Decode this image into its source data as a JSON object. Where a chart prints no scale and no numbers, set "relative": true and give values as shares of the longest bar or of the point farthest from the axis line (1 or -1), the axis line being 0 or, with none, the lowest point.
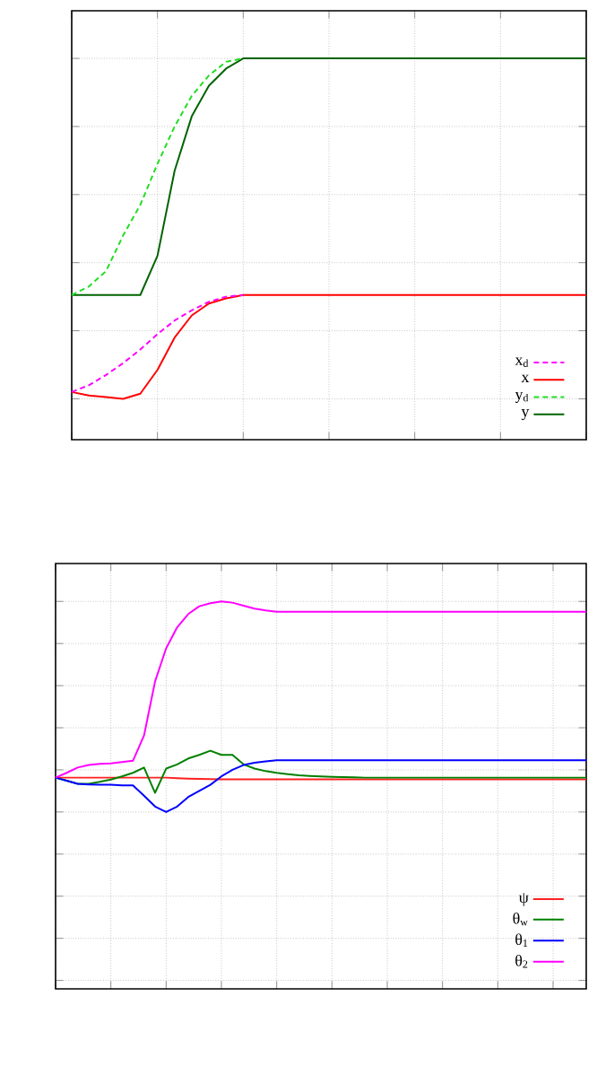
{
  "chart_data": [
    {
      "type": "line",
      "relative": true,
      "grid": true,
      "legend": "bottom right",
      "tick_labels": false,
      "categories": [
        null,
        null,
        null,
        null,
        null,
        null,
        null,
        null,
        null,
        null,
        null,
        null,
        null,
        null,
        null,
        null,
        null,
        null,
        null,
        null,
        null,
        null,
        null,
        null,
        null,
        null,
        null,
        null,
        null,
        null,
        null
      ],
      "series": [
        {
          "name": "x$_{d}$",
          "color": "#ff00ff",
          "line_style": "dashed",
          "values": [
            0.02,
            0.04,
            0.07,
            0.105,
            0.145,
            0.19,
            0.23,
            0.26,
            0.285,
            0.3,
            0.305,
            null,
            null,
            null,
            null,
            null,
            null,
            null,
            null,
            null,
            null,
            null,
            null,
            null,
            null,
            null,
            null,
            null,
            null,
            null,
            null
          ]
        },
        {
          "name": "x",
          "color": "#ff0000",
          "line_style": "solid",
          "values": [
            0.02,
            0.01,
            0.005,
            0,
            0.015,
            0.085,
            0.18,
            0.245,
            0.28,
            0.295,
            0.305,
            0.305,
            0.305,
            0.305,
            0.305,
            0.305,
            0.305,
            0.305,
            0.305,
            0.305,
            0.305,
            0.305,
            0.305,
            0.305,
            0.305,
            0.305,
            0.305,
            0.305,
            0.305,
            0.305,
            0.305
          ]
        },
        {
          "name": "y$_{d}$",
          "color": "#22dd22",
          "line_style": "dashed",
          "values": [
            0.305,
            0.33,
            0.375,
            0.48,
            0.57,
            0.69,
            0.8,
            0.89,
            0.95,
            0.99,
            1,
            null,
            null,
            null,
            null,
            null,
            null,
            null,
            null,
            null,
            null,
            null,
            null,
            null,
            null,
            null,
            null,
            null,
            null,
            null,
            null
          ]
        },
        {
          "name": "y",
          "color": "#006400",
          "line_style": "solid",
          "values": [
            0.305,
            0.305,
            0.305,
            0.305,
            0.305,
            0.42,
            0.67,
            0.83,
            0.92,
            0.97,
            1,
            1,
            1,
            1,
            1,
            1,
            1,
            1,
            1,
            1,
            1,
            1,
            1,
            1,
            1,
            1,
            1,
            1,
            1,
            1,
            1
          ]
        }
      ]
    },
    {
      "type": "line",
      "relative": true,
      "grid": true,
      "legend": "bottom right",
      "tick_labels": false,
      "categories": [
        null,
        null,
        null,
        null,
        null,
        null,
        null,
        null,
        null,
        null,
        null,
        null,
        null,
        null,
        null,
        null,
        null,
        null,
        null,
        null,
        null,
        null,
        null,
        null,
        null,
        null,
        null,
        null,
        null,
        null,
        null,
        null,
        null,
        null,
        null,
        null,
        null,
        null,
        null,
        null,
        null,
        null,
        null,
        null,
        null,
        null,
        null,
        null,
        null
      ],
      "series": [
        {
          "name": "ψ",
          "color": "#ff2020",
          "line_style": "solid",
          "values": [
            0.163,
            0.163,
            0.163,
            0.163,
            0.163,
            0.163,
            0.163,
            0.163,
            0.163,
            0.163,
            0.163,
            0.16,
            0.158,
            0.157,
            0.156,
            0.155,
            0.155,
            0.155,
            0.155,
            0.155,
            0.155,
            0.155,
            0.155,
            0.155,
            0.155,
            0.155,
            0.155,
            0.155,
            0.155,
            0.155,
            0.155,
            0.155,
            0.155,
            0.155,
            0.155,
            0.155,
            0.155,
            0.155,
            0.155,
            0.155,
            0.155,
            0.155,
            0.155,
            0.155,
            0.155,
            0.155,
            0.155,
            0.155,
            0.155
          ]
        },
        {
          "name": "θ$_{w}$",
          "color": "#008000",
          "line_style": "solid",
          "values": [
            0.163,
            0.149,
            0.134,
            0.134,
            0.143,
            0.154,
            0.169,
            0.186,
            0.211,
            0.091,
            0.206,
            0.226,
            0.254,
            0.271,
            0.291,
            0.271,
            0.271,
            0.226,
            0.206,
            0.194,
            0.186,
            0.18,
            0.174,
            0.171,
            0.169,
            0.167,
            0.166,
            0.165,
            0.163,
            0.163,
            0.163,
            0.163,
            0.163,
            0.163,
            0.163,
            0.163,
            0.163,
            0.163,
            0.163,
            0.163,
            0.163,
            0.163,
            0.163,
            0.163,
            0.163,
            0.163,
            0.163,
            0.163,
            0.163
          ]
        },
        {
          "name": "θ$_{1}$",
          "color": "#0000ff",
          "line_style": "solid",
          "values": [
            0.163,
            0.149,
            0.134,
            0.131,
            0.129,
            0.129,
            0.126,
            0.126,
            0.077,
            0.026,
            0,
            0.026,
            0.071,
            0.1,
            0.129,
            0.169,
            0.2,
            0.223,
            0.234,
            0.24,
            0.246,
            0.246,
            0.246,
            0.246,
            0.246,
            0.246,
            0.246,
            0.246,
            0.246,
            0.246,
            0.246,
            0.246,
            0.246,
            0.246,
            0.246,
            0.246,
            0.246,
            0.246,
            0.246,
            0.246,
            0.246,
            0.246,
            0.246,
            0.246,
            0.246,
            0.246,
            0.246,
            0.246,
            0.246
          ]
        },
        {
          "name": "θ$_{2}$",
          "color": "#ff00ff",
          "line_style": "solid",
          "values": [
            0.163,
            0.186,
            0.211,
            0.223,
            0.229,
            0.231,
            0.237,
            0.243,
            0.363,
            0.62,
            0.777,
            0.877,
            0.94,
            0.977,
            0.991,
            1,
            0.994,
            0.98,
            0.966,
            0.957,
            0.951,
            0.951,
            0.951,
            0.951,
            0.951,
            0.951,
            0.951,
            0.951,
            0.951,
            0.951,
            0.951,
            0.951,
            0.951,
            0.951,
            0.951,
            0.951,
            0.951,
            0.951,
            0.951,
            0.951,
            0.951,
            0.951,
            0.951,
            0.951,
            0.951,
            0.951,
            0.951,
            0.951,
            0.951
          ]
        }
      ]
    }
  ]
}
